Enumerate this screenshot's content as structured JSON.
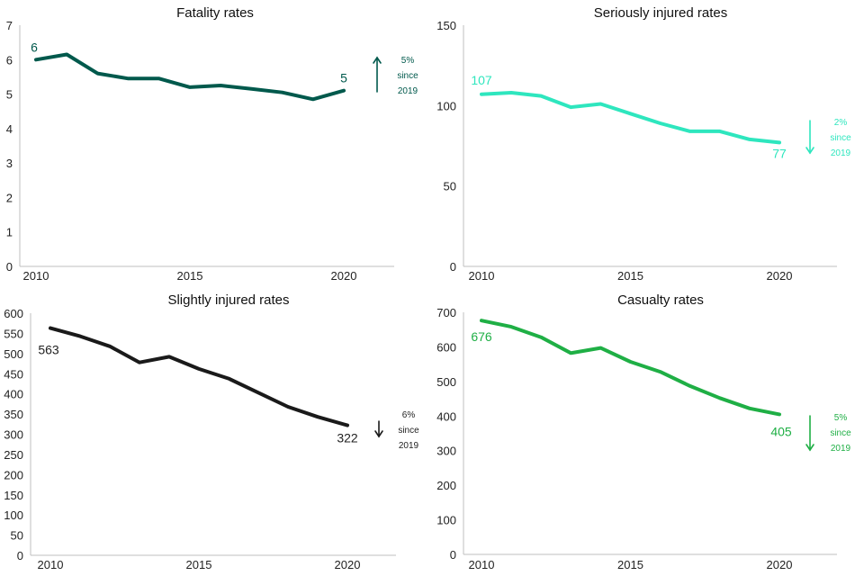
{
  "chart_data": [
    {
      "type": "line",
      "title": "Fatality rates",
      "color": "#00594C",
      "x": [
        2010,
        2011,
        2012,
        2013,
        2014,
        2015,
        2016,
        2017,
        2018,
        2019,
        2020
      ],
      "values": [
        6.0,
        6.15,
        5.6,
        5.45,
        5.45,
        5.2,
        5.25,
        5.15,
        5.05,
        4.85,
        5.1
      ],
      "ylim": [
        0,
        7
      ],
      "yticks": [
        "0",
        "1",
        "2",
        "3",
        "4",
        "5",
        "6",
        "7"
      ],
      "xticks": [
        "2010",
        "2015",
        "2020"
      ],
      "first_label": "6",
      "last_label": "5",
      "trend": "up",
      "change_lines": [
        "5%",
        "since",
        "2019"
      ]
    },
    {
      "type": "line",
      "title": "Seriously injured rates",
      "color": "#2EE6BE",
      "x": [
        2010,
        2011,
        2012,
        2013,
        2014,
        2015,
        2016,
        2017,
        2018,
        2019,
        2020
      ],
      "values": [
        107,
        108,
        106,
        99,
        101,
        95,
        89,
        84,
        84,
        79,
        77
      ],
      "ylim": [
        0,
        150
      ],
      "yticks": [
        "0",
        "50",
        "100",
        "150"
      ],
      "xticks": [
        "2010",
        "2015",
        "2020"
      ],
      "first_label": "107",
      "last_label": "77",
      "trend": "down",
      "change_lines": [
        "2%",
        "since",
        "2019"
      ]
    },
    {
      "type": "line",
      "title": "Slightly injured rates",
      "color": "#1A1A1A",
      "x": [
        2010,
        2011,
        2012,
        2013,
        2014,
        2015,
        2016,
        2017,
        2018,
        2019,
        2020
      ],
      "values": [
        563,
        543,
        518,
        478,
        492,
        462,
        438,
        403,
        368,
        343,
        322
      ],
      "ylim": [
        0,
        600
      ],
      "yticks": [
        "0",
        "50",
        "100",
        "150",
        "200",
        "250",
        "300",
        "350",
        "400",
        "450",
        "500",
        "550",
        "600"
      ],
      "xticks": [
        "2010",
        "2015",
        "2020"
      ],
      "first_label": "563",
      "last_label": "322",
      "trend": "down",
      "change_lines": [
        "6%",
        "since",
        "2019"
      ]
    },
    {
      "type": "line",
      "title": "Casualty rates",
      "color": "#1FAF45",
      "x": [
        2010,
        2011,
        2012,
        2013,
        2014,
        2015,
        2016,
        2017,
        2018,
        2019,
        2020
      ],
      "values": [
        676,
        658,
        628,
        582,
        597,
        557,
        528,
        487,
        452,
        422,
        405
      ],
      "ylim": [
        0,
        700
      ],
      "yticks": [
        "0",
        "100",
        "200",
        "300",
        "400",
        "500",
        "600",
        "700"
      ],
      "xticks": [
        "2010",
        "2015",
        "2020"
      ],
      "first_label": "676",
      "last_label": "405",
      "trend": "down",
      "change_lines": [
        "5%",
        "since",
        "2019"
      ]
    }
  ]
}
